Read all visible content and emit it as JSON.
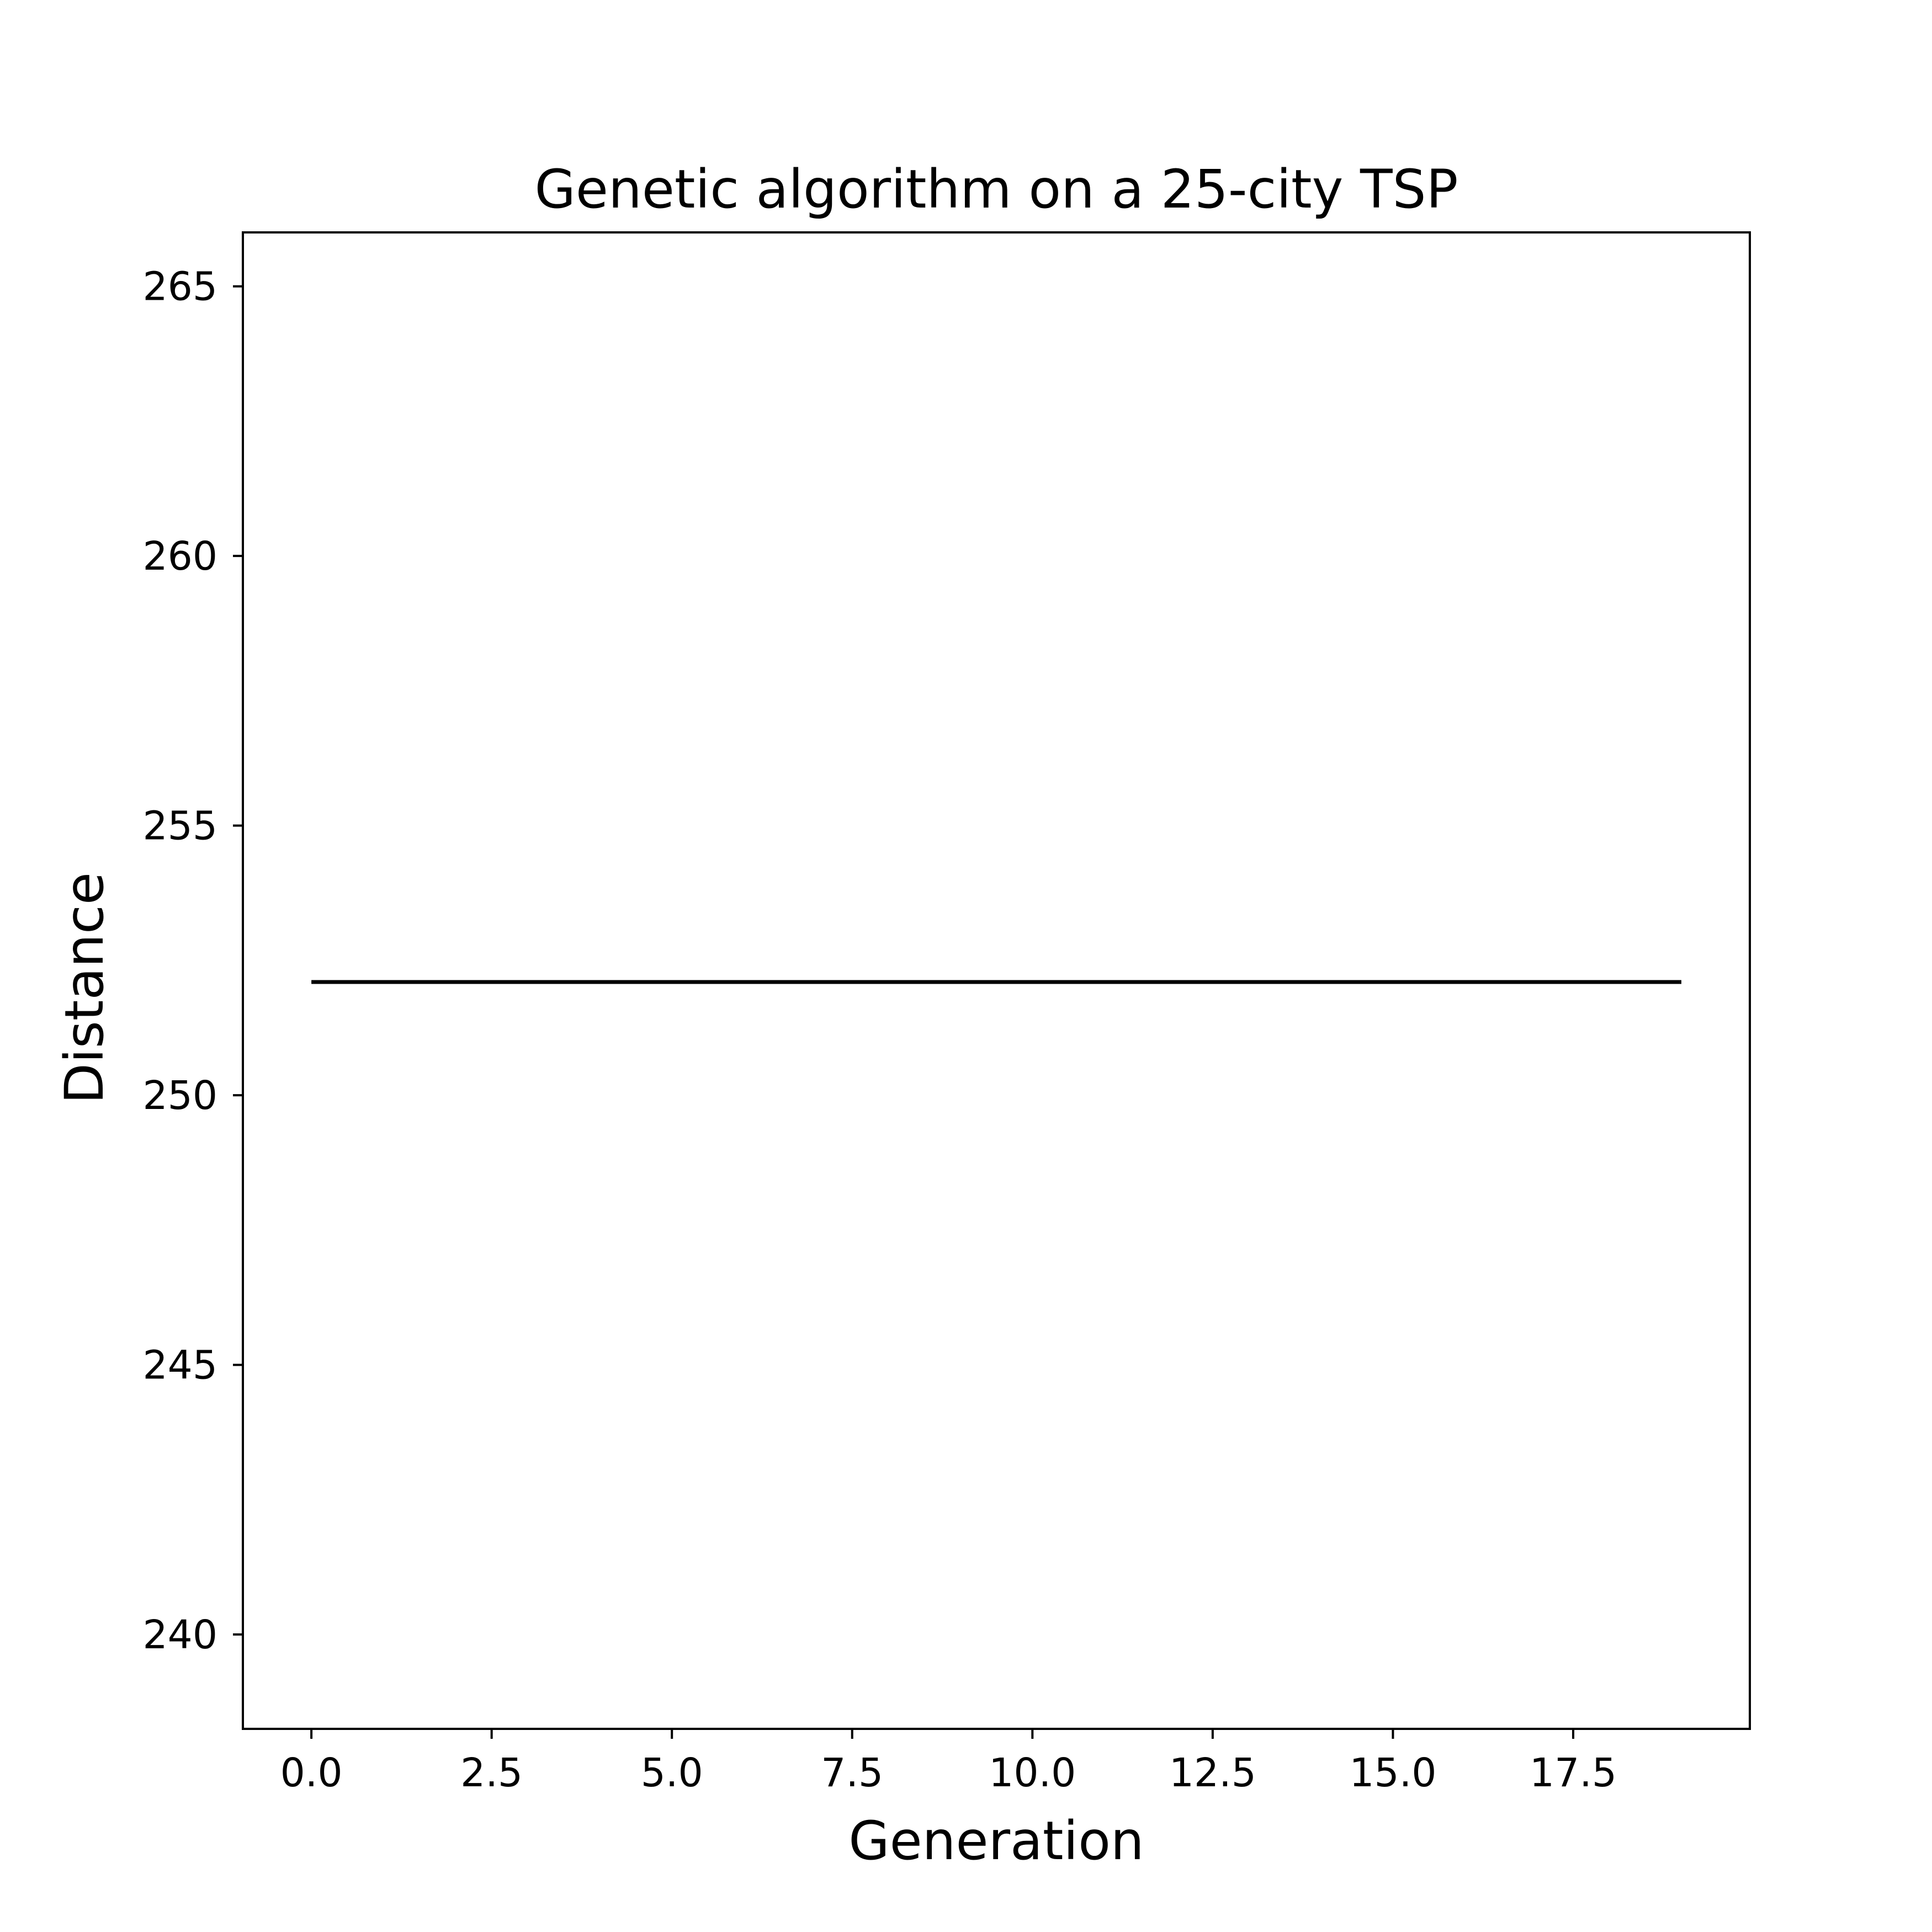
{
  "chart_data": {
    "type": "line",
    "title": "Genetic algorithm on a 25-city TSP",
    "xlabel": "Generation",
    "ylabel": "Distance",
    "xlim": [
      -0.95,
      19.95
    ],
    "ylim": [
      238.25,
      266.0
    ],
    "xticks": [
      0.0,
      2.5,
      5.0,
      7.5,
      10.0,
      12.5,
      15.0,
      17.5
    ],
    "xtick_labels": [
      "0.0",
      "2.5",
      "5.0",
      "7.5",
      "10.0",
      "12.5",
      "15.0",
      "17.5"
    ],
    "yticks": [
      240,
      245,
      250,
      255,
      260,
      265
    ],
    "ytick_labels": [
      "240",
      "245",
      "250",
      "255",
      "260",
      "265"
    ],
    "grid": false,
    "legend": "none",
    "series": [
      {
        "color": "#000000",
        "x": [
          0,
          1,
          2,
          3,
          4,
          5,
          6,
          7,
          8,
          9,
          10,
          11,
          12,
          13,
          14,
          15,
          16,
          17,
          18,
          19
        ],
        "y": [
          252.1,
          252.1,
          252.1,
          252.1,
          252.1,
          252.1,
          252.1,
          252.1,
          252.1,
          252.1,
          252.1,
          252.1,
          252.1,
          252.1,
          252.1,
          252.1,
          252.1,
          252.1,
          252.1,
          252.1
        ]
      }
    ]
  }
}
